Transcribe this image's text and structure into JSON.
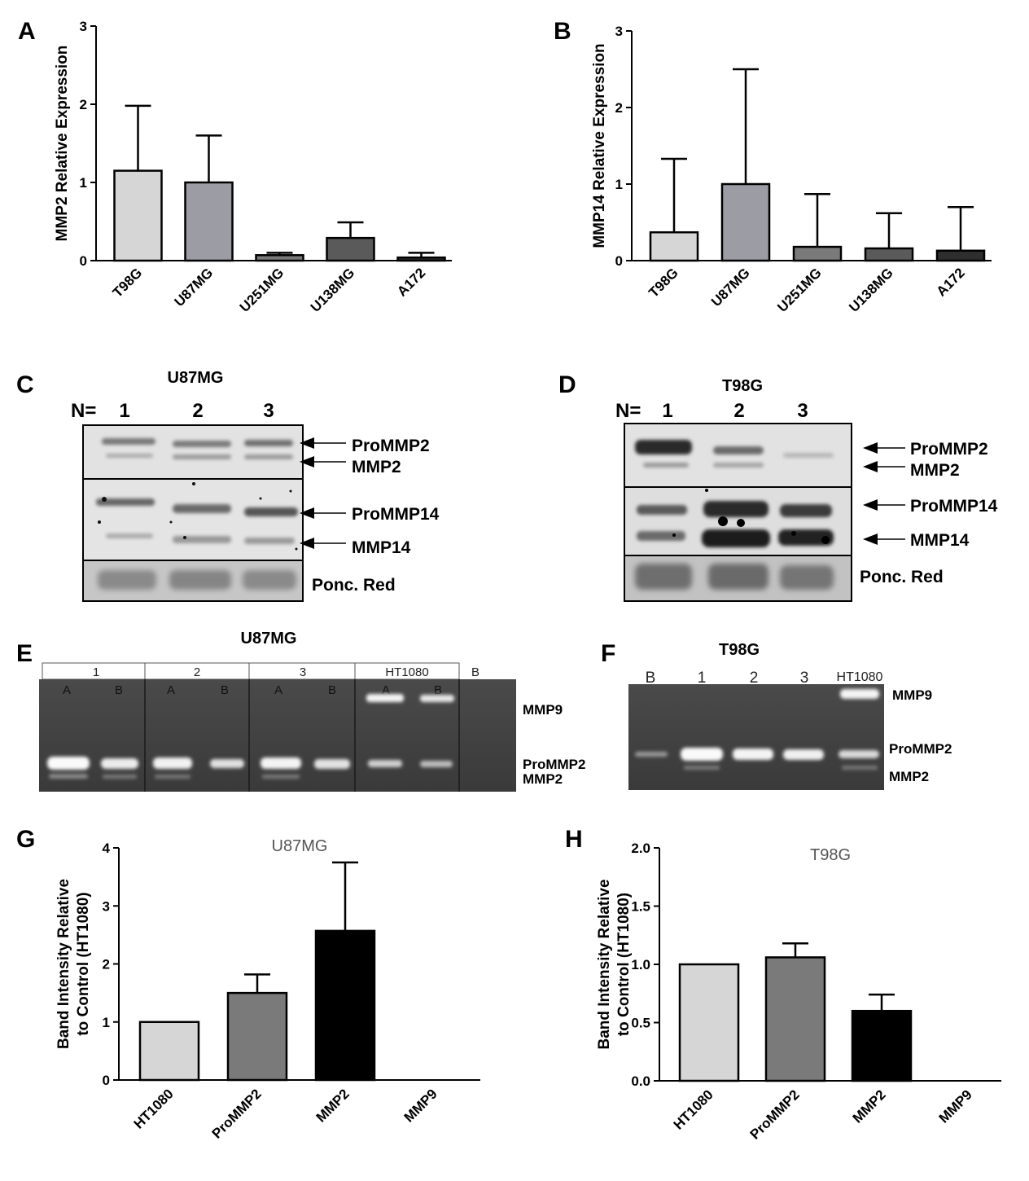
{
  "panels": {
    "A": "A",
    "B": "B",
    "C": "C",
    "D": "D",
    "E": "E",
    "F": "F",
    "G": "G",
    "H": "H"
  },
  "blots": {
    "C": {
      "title": "U87MG",
      "n_label": "N=",
      "lanes": [
        "1",
        "2",
        "3"
      ],
      "bands": [
        "ProMMP2",
        "MMP2",
        "ProMMP14",
        "MMP14"
      ],
      "loading": "Ponc. Red"
    },
    "D": {
      "title": "T98G",
      "n_label": "N=",
      "lanes": [
        "1",
        "2",
        "3"
      ],
      "bands": [
        "ProMMP2",
        "MMP2",
        "ProMMP14",
        "MMP14"
      ],
      "loading": "Ponc. Red"
    }
  },
  "gels": {
    "E": {
      "title": "U87MG",
      "groups": [
        "1",
        "2",
        "3",
        "HT1080",
        "B"
      ],
      "lanes": [
        "A",
        "B",
        "A",
        "B",
        "A",
        "B",
        "A",
        "B"
      ],
      "bands": [
        "MMP9",
        "ProMMP2",
        "MMP2"
      ]
    },
    "F": {
      "title": "T98G",
      "lanes": [
        "B",
        "1",
        "2",
        "3",
        "HT1080"
      ],
      "bands": [
        "MMP9",
        "ProMMP2",
        "MMP2"
      ]
    }
  },
  "chart_data": [
    {
      "id": "A",
      "type": "bar",
      "title": "",
      "xlabel": "",
      "ylabel": "MMP2 Relative Expression",
      "categories": [
        "T98G",
        "U87MG",
        "U251MG",
        "U138MG",
        "A172"
      ],
      "values": [
        1.15,
        1.0,
        0.07,
        0.29,
        0.04
      ],
      "errors": [
        0.83,
        0.6,
        0.03,
        0.2,
        0.06
      ],
      "yticks": [
        "0",
        "1",
        "2",
        "3"
      ],
      "ylim": [
        0,
        3
      ],
      "colors": [
        "#d6d6d6",
        "#9c9ca4",
        "#7a7a7a",
        "#5a5a5a",
        "#2e2e2e"
      ]
    },
    {
      "id": "B",
      "type": "bar",
      "title": "",
      "xlabel": "",
      "ylabel": "MMP14 Relative Expression",
      "categories": [
        "T98G",
        "U87MG",
        "U251MG",
        "U138MG",
        "A172"
      ],
      "values": [
        0.37,
        1.0,
        0.18,
        0.16,
        0.13
      ],
      "errors": [
        0.96,
        1.5,
        0.69,
        0.46,
        0.57
      ],
      "yticks": [
        "0",
        "1",
        "2",
        "3"
      ],
      "ylim": [
        0,
        3
      ],
      "colors": [
        "#d6d6d6",
        "#9c9ca4",
        "#7a7a7a",
        "#5a5a5a",
        "#2e2e2e"
      ]
    },
    {
      "id": "G",
      "type": "bar",
      "title": "U87MG",
      "xlabel": "",
      "ylabel": [
        "Band Intensity Relative",
        "to Control (HT1080)"
      ],
      "categories": [
        "HT1080",
        "ProMMP2",
        "MMP2",
        "MMP9"
      ],
      "values": [
        1.0,
        1.5,
        2.57,
        0
      ],
      "errors": [
        0,
        0.32,
        1.18,
        0
      ],
      "yticks": [
        "0",
        "1",
        "2",
        "3",
        "4"
      ],
      "ylim": [
        0,
        4
      ],
      "colors": [
        "#d6d6d6",
        "#7a7a7a",
        "#000000",
        "#000000"
      ]
    },
    {
      "id": "H",
      "type": "bar",
      "title": "T98G",
      "xlabel": "",
      "ylabel": [
        "Band Intensity Relative",
        "to Control (HT1080)"
      ],
      "categories": [
        "HT1080",
        "ProMMP2",
        "MMP2",
        "MMP9"
      ],
      "values": [
        1.0,
        1.06,
        0.6,
        0
      ],
      "errors": [
        0,
        0.12,
        0.14,
        0
      ],
      "yticks": [
        "0.0",
        "0.5",
        "1.0",
        "1.5",
        "2.0"
      ],
      "ylim": [
        0,
        2
      ],
      "colors": [
        "#d6d6d6",
        "#7a7a7a",
        "#000000",
        "#000000"
      ]
    }
  ]
}
